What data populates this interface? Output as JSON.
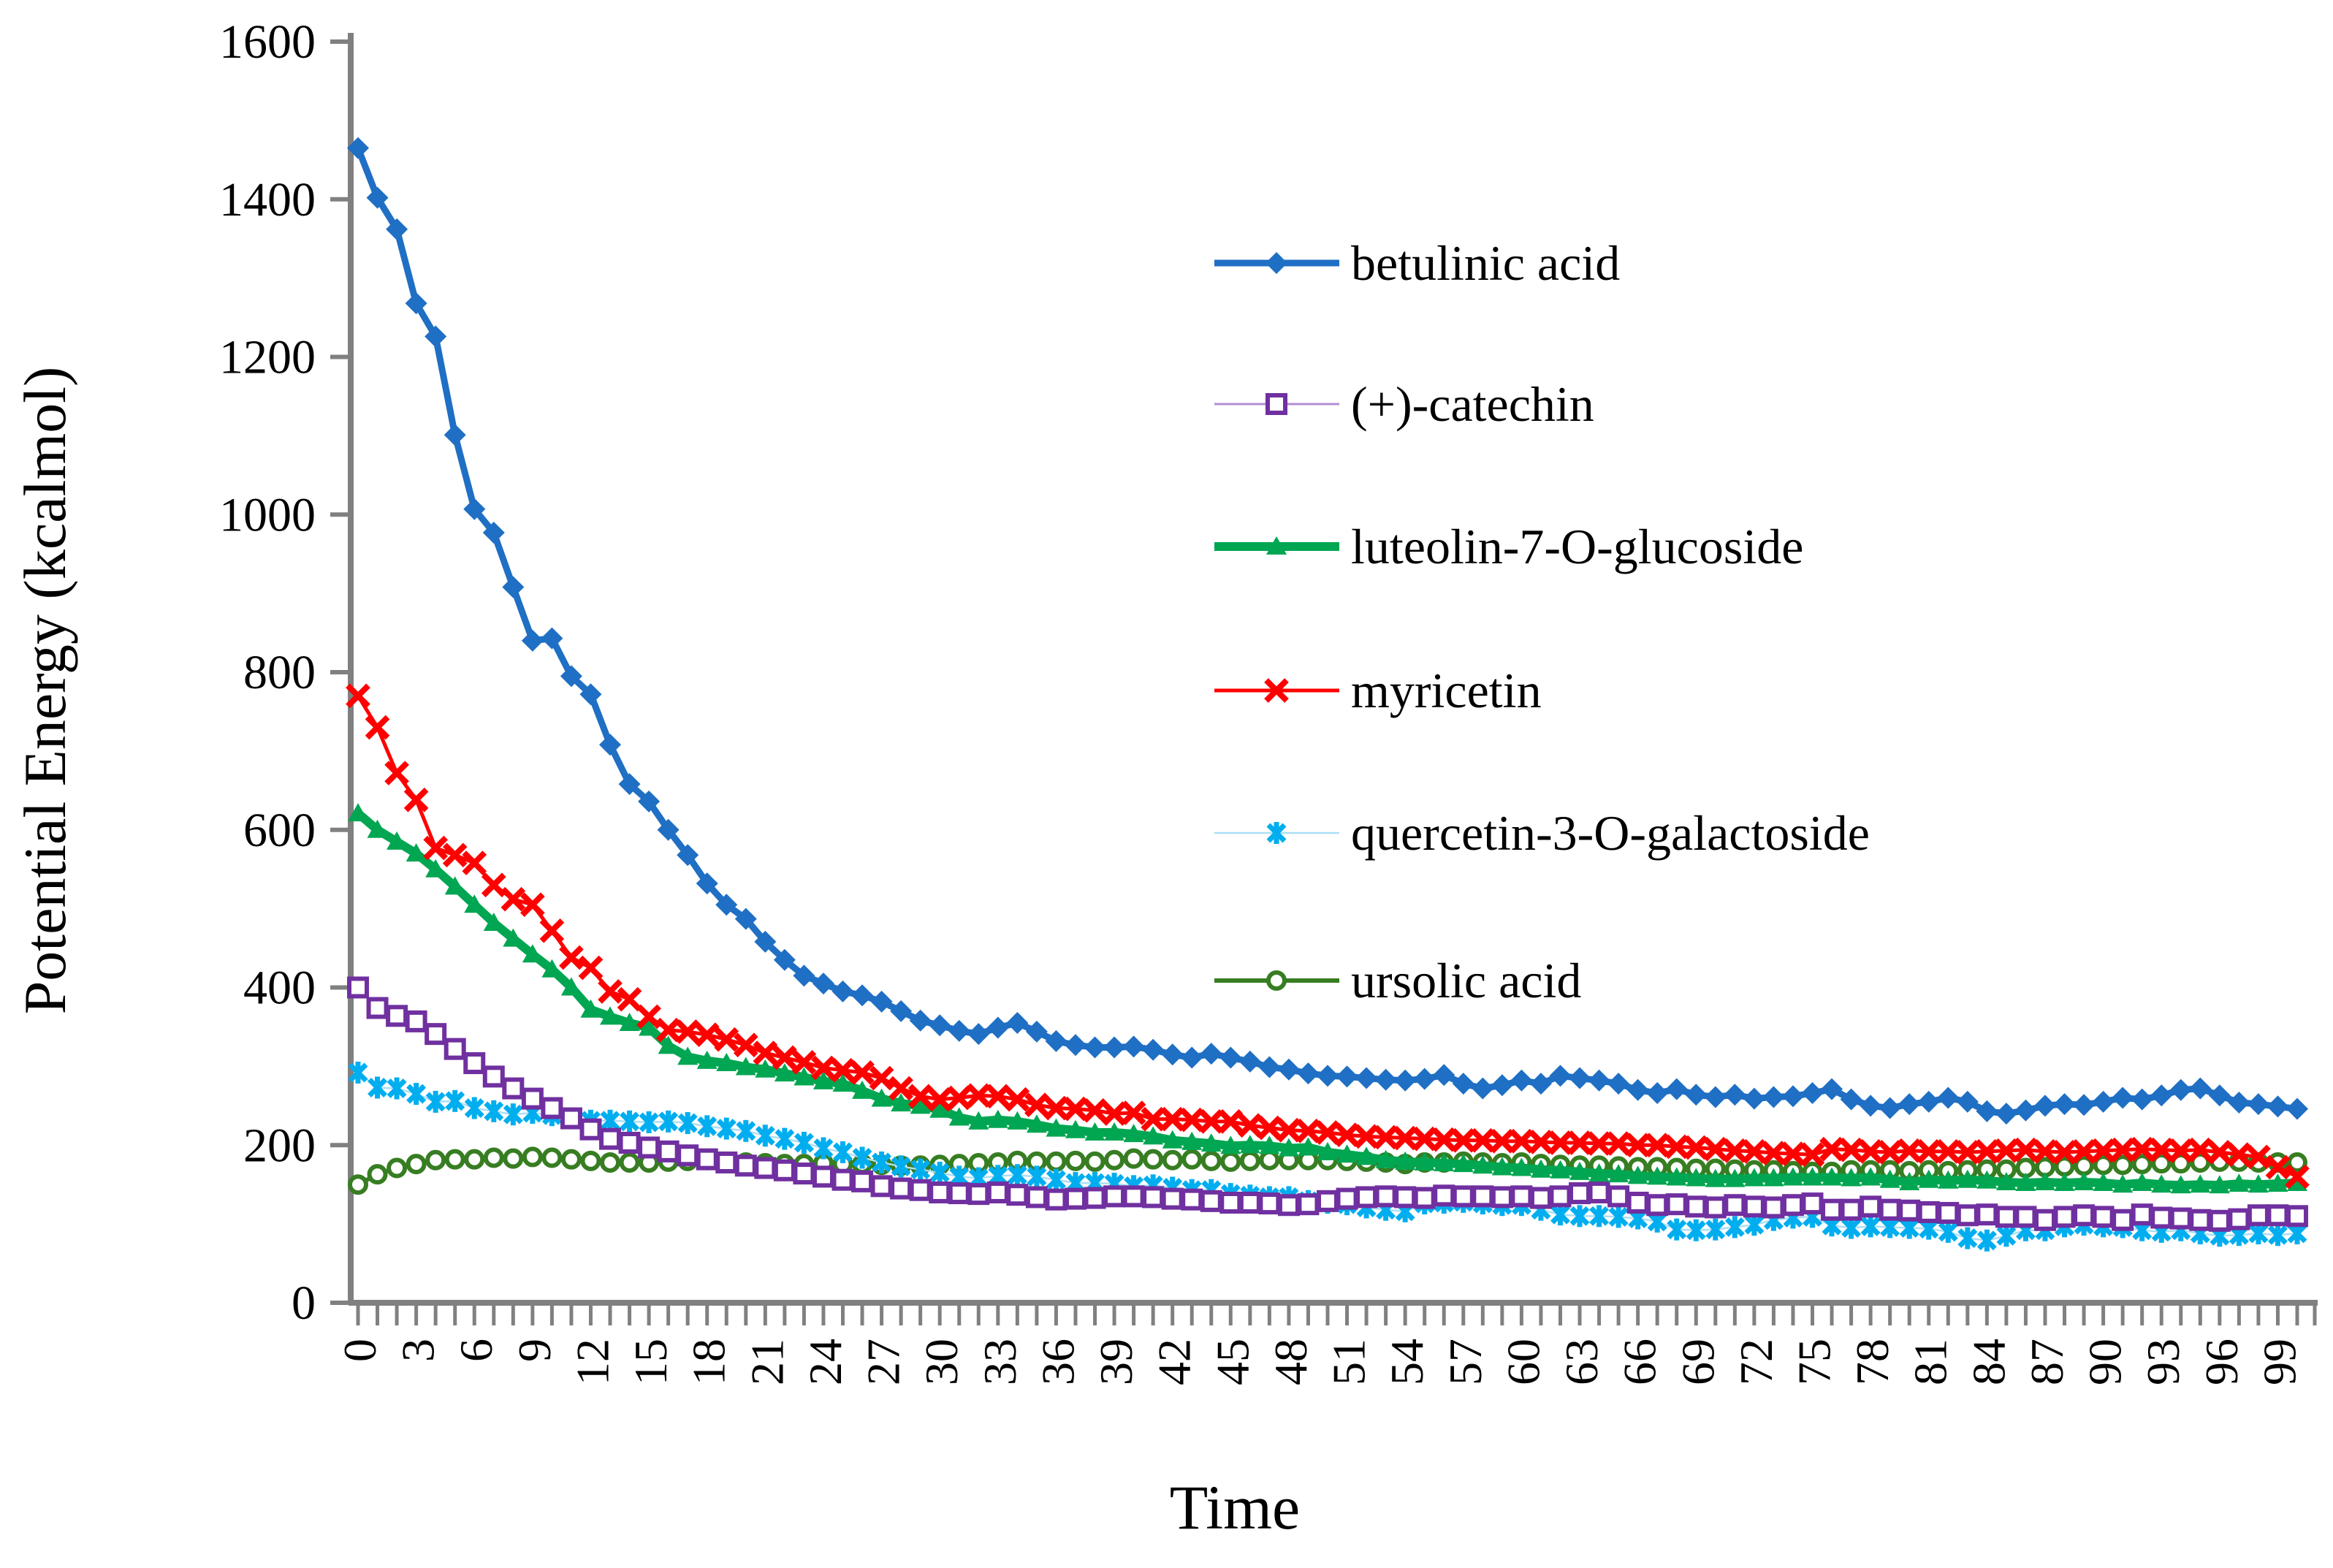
{
  "chart_data": {
    "type": "line",
    "title": "",
    "xlabel": "Time",
    "ylabel": "Potential Energy (kcalmol)",
    "ylim": [
      0,
      1600
    ],
    "y_tick_step": 200,
    "x_values_range": [
      0,
      100
    ],
    "x_tick_label_step": 3,
    "x_tick_labels": [
      "0",
      "3",
      "6",
      "9",
      "12",
      "15",
      "18",
      "21",
      "24",
      "27",
      "30",
      "33",
      "36",
      "39",
      "42",
      "45",
      "48",
      "51",
      "54",
      "57",
      "60",
      "63",
      "66",
      "69",
      "72",
      "75",
      "78",
      "81",
      "84",
      "87",
      "90",
      "93",
      "96",
      "99"
    ],
    "grid": false,
    "legend_position": "upper-right-inside",
    "axis_color": "#808080",
    "series": [
      {
        "name": "betulinic acid",
        "marker": "diamond",
        "color": "#1F6FC4",
        "line_color": "#1F6FC4",
        "line_width": 9,
        "values": [
          1465,
          1402,
          1362,
          1268,
          1226,
          1101,
          1007,
          977,
          908,
          840,
          843,
          795,
          772,
          708,
          658,
          636,
          600,
          568,
          532,
          505,
          487,
          458,
          435,
          415,
          405,
          395,
          390,
          382,
          370,
          358,
          352,
          345,
          341,
          349,
          355,
          344,
          332,
          327,
          324,
          324,
          325,
          321,
          315,
          311,
          316,
          311,
          306,
          299,
          296,
          291,
          288,
          287,
          285,
          283,
          282,
          284,
          289,
          278,
          272,
          276,
          282,
          278,
          288,
          285,
          282,
          278,
          270,
          266,
          271,
          264,
          261,
          264,
          259,
          261,
          262,
          266,
          271,
          258,
          250,
          247,
          252,
          255,
          260,
          255,
          243,
          240,
          244,
          250,
          252,
          251,
          255,
          260,
          258,
          263,
          270,
          272,
          263,
          254,
          252,
          249,
          246
        ]
      },
      {
        "name": "(+)-catechin",
        "marker": "square-open",
        "color": "#7030A0",
        "line_color": "#B18FD0",
        "line_width": 3,
        "values": [
          400,
          374,
          364,
          357,
          341,
          322,
          304,
          287,
          272,
          259,
          247,
          234,
          220,
          208,
          203,
          197,
          192,
          187,
          182,
          178,
          174,
          171,
          168,
          164,
          160,
          156,
          154,
          148,
          145,
          143,
          140,
          139,
          138,
          140,
          137,
          134,
          131,
          132,
          133,
          135,
          135,
          134,
          132,
          131,
          129,
          127,
          127,
          126,
          124,
          125,
          129,
          132,
          134,
          135,
          134,
          133,
          136,
          135,
          135,
          134,
          135,
          133,
          135,
          139,
          140,
          135,
          127,
          124,
          125,
          122,
          121,
          124,
          122,
          121,
          124,
          126,
          118,
          118,
          122,
          118,
          117,
          115,
          114,
          111,
          112,
          109,
          109,
          105,
          109,
          111,
          109,
          105,
          112,
          108,
          107,
          105,
          104,
          106,
          111,
          111,
          110
        ]
      },
      {
        "name": "luteolin-7-O-glucoside",
        "marker": "triangle",
        "color": "#00A651",
        "line_color": "#00A651",
        "line_width": 12,
        "values": [
          621,
          600,
          585,
          570,
          550,
          528,
          505,
          482,
          462,
          442,
          423,
          400,
          372,
          363,
          355,
          349,
          326,
          312,
          307,
          304,
          299,
          296,
          291,
          286,
          281,
          278,
          269,
          259,
          253,
          250,
          245,
          235,
          230,
          232,
          230,
          226,
          221,
          219,
          216,
          216,
          214,
          211,
          206,
          204,
          202,
          199,
          200,
          199,
          196,
          197,
          191,
          188,
          185,
          181,
          179,
          178,
          177,
          176,
          174,
          172,
          171,
          169,
          168,
          166,
          164,
          163,
          161,
          160,
          159,
          158,
          157,
          157,
          158,
          158,
          159,
          159,
          159,
          158,
          159,
          156,
          153,
          156,
          155,
          156,
          155,
          153,
          152,
          153,
          152,
          153,
          152,
          150,
          152,
          150,
          149,
          150,
          149,
          151,
          150,
          151,
          152
        ]
      },
      {
        "name": "myricetin",
        "marker": "x-cross",
        "color": "#FF0000",
        "line_color": "#FF0000",
        "line_width": 5,
        "values": [
          770,
          730,
          672,
          638,
          577,
          568,
          558,
          530,
          512,
          505,
          472,
          438,
          425,
          395,
          385,
          363,
          346,
          344,
          340,
          334,
          327,
          317,
          311,
          305,
          298,
          295,
          292,
          285,
          272,
          262,
          258,
          260,
          263,
          262,
          258,
          251,
          247,
          246,
          244,
          240,
          241,
          233,
          233,
          232,
          230,
          230,
          225,
          222,
          219,
          218,
          216,
          213,
          211,
          210,
          209,
          208,
          207,
          206,
          206,
          205,
          205,
          204,
          203,
          203,
          202,
          202,
          200,
          200,
          198,
          197,
          195,
          193,
          192,
          190,
          189,
          188,
          195,
          194,
          192,
          191,
          193,
          192,
          192,
          191,
          192,
          193,
          194,
          192,
          191,
          192,
          193,
          194,
          195,
          194,
          193,
          194,
          191,
          188,
          185,
          172,
          160
        ]
      },
      {
        "name": "quercetin-3-O-galactoside",
        "marker": "asterisk",
        "color": "#00AEEF",
        "line_color": "#AADFF5",
        "line_width": 2.5,
        "values": [
          292,
          273,
          272,
          265,
          255,
          256,
          247,
          243,
          239,
          241,
          238,
          234,
          231,
          231,
          230,
          229,
          230,
          228,
          224,
          221,
          218,
          212,
          208,
          203,
          196,
          191,
          184,
          178,
          173,
          169,
          165,
          160,
          158,
          161,
          162,
          160,
          156,
          152,
          152,
          151,
          148,
          149,
          146,
          143,
          143,
          138,
          136,
          134,
          134,
          129,
          127,
          125,
          121,
          118,
          116,
          126,
          127,
          128,
          126,
          124,
          124,
          118,
          112,
          110,
          110,
          109,
          107,
          103,
          93,
          92,
          93,
          96,
          99,
          105,
          108,
          109,
          98,
          95,
          97,
          96,
          95,
          94,
          90,
          82,
          79,
          85,
          92,
          92,
          97,
          99,
          97,
          96,
          92,
          90,
          92,
          88,
          85,
          86,
          88,
          86,
          88
        ]
      },
      {
        "name": "ursolic acid",
        "marker": "circle-open",
        "color": "#377D22",
        "line_color": "#377D22",
        "line_width": 6,
        "values": [
          150,
          163,
          171,
          176,
          181,
          182,
          182,
          184,
          183,
          185,
          184,
          182,
          180,
          178,
          178,
          178,
          179,
          180,
          181,
          179,
          178,
          177,
          176,
          176,
          177,
          176,
          176,
          175,
          174,
          174,
          175,
          176,
          177,
          178,
          180,
          179,
          179,
          180,
          179,
          181,
          183,
          182,
          181,
          182,
          180,
          179,
          180,
          181,
          181,
          181,
          181,
          180,
          179,
          178,
          176,
          178,
          178,
          179,
          178,
          177,
          178,
          176,
          175,
          174,
          174,
          173,
          172,
          172,
          171,
          170,
          170,
          169,
          168,
          168,
          167,
          166,
          166,
          168,
          168,
          168,
          167,
          168,
          167,
          168,
          169,
          169,
          171,
          172,
          173,
          174,
          175,
          175,
          176,
          177,
          177,
          178,
          179,
          179,
          178,
          178,
          178
        ]
      }
    ],
    "legend": [
      {
        "label": "betulinic acid",
        "marker": "diamond",
        "color": "#1F6FC4",
        "line_color": "#1F6FC4",
        "line_width": 9
      },
      {
        "label": "(+)-catechin",
        "marker": "square-open",
        "color": "#7030A0",
        "line_color": "#B18FD0",
        "line_width": 3
      },
      {
        "label": "luteolin-7-O-glucoside",
        "marker": "triangle",
        "color": "#00A651",
        "line_color": "#00A651",
        "line_width": 12
      },
      {
        "label": "myricetin",
        "marker": "x-cross",
        "color": "#FF0000",
        "line_color": "#FF0000",
        "line_width": 5
      },
      {
        "label": "quercetin-3-O-galactoside",
        "marker": "asterisk",
        "color": "#00AEEF",
        "line_color": "#AADFF5",
        "line_width": 2.5
      },
      {
        "label": "ursolic acid",
        "marker": "circle-open",
        "color": "#377D22",
        "line_color": "#377D22",
        "line_width": 6
      }
    ]
  },
  "layout_text": {
    "x_title": "Time",
    "y_title": "Potential Energy (kcalmol)"
  }
}
